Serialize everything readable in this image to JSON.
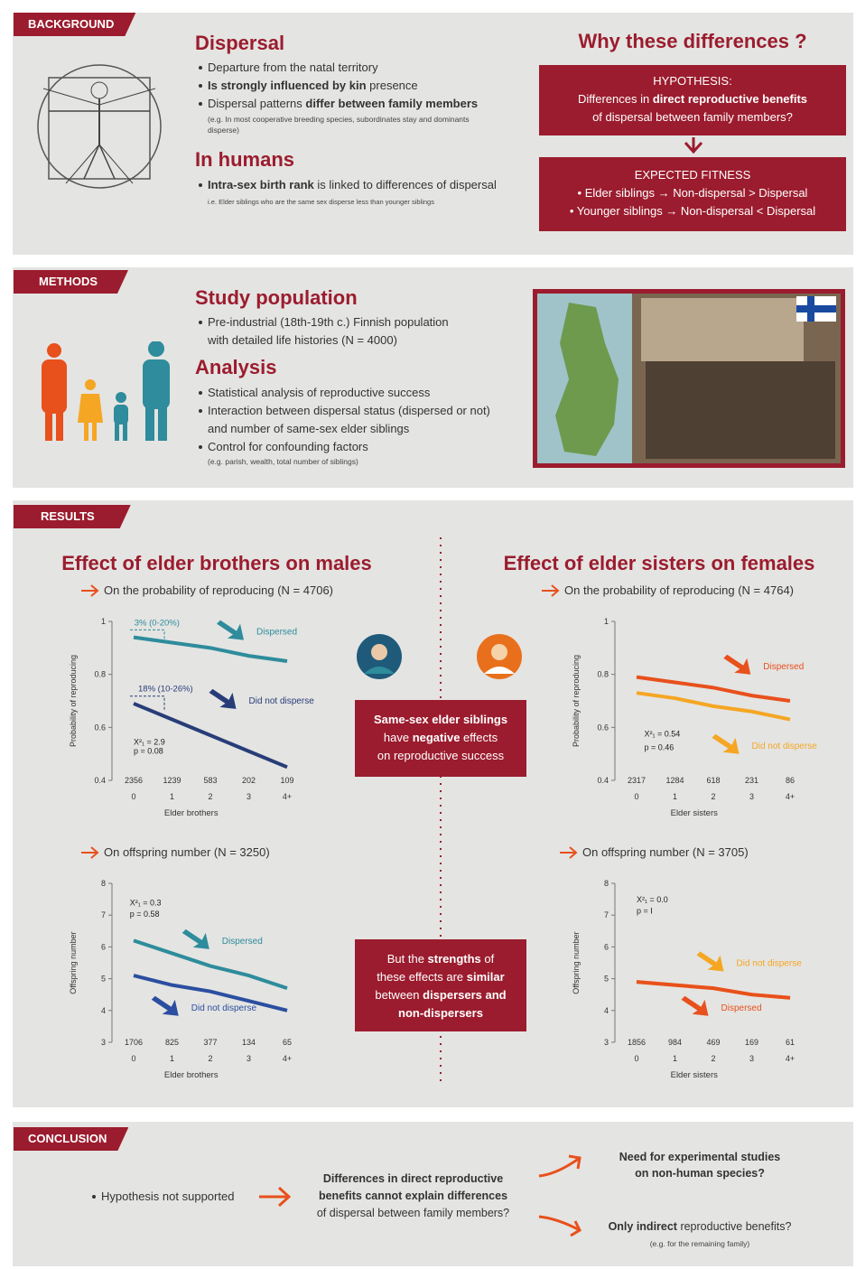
{
  "background": {
    "label": "BACKGROUND",
    "dispersal_title": "Dispersal",
    "dispersal_bullets": [
      [
        {
          "text": "Departure from the natal territory"
        }
      ],
      [
        {
          "text": "Is strongly influenced by kin",
          "bold": true
        },
        {
          "text": " presence"
        }
      ],
      [
        {
          "text": "Dispersal patterns "
        },
        {
          "text": "differ between family members",
          "bold": true
        }
      ]
    ],
    "dispersal_note": "(e.g. In most cooperative breeding species, subordinates stay and dominants disperse)",
    "humans_title": "In humans",
    "humans_bullets": [
      [
        {
          "text": "Intra-sex birth rank",
          "bold": true
        },
        {
          "text": " is linked to differences of dispersal"
        }
      ]
    ],
    "humans_note": "i.e. Elder siblings who are the same sex disperse less than younger siblings",
    "why_title": "Why these differences ?",
    "hypothesis": [
      [
        {
          "text": "HYPOTHESIS:"
        }
      ],
      [
        {
          "text": "Differences in "
        },
        {
          "text": "direct reproductive benefits",
          "bold": true
        }
      ],
      [
        {
          "text": "of dispersal between family members?"
        }
      ]
    ],
    "expected": [
      [
        {
          "text": "EXPECTED FITNESS"
        }
      ],
      [
        {
          "text": "• Elder siblings → Non-dispersal > Dispersal"
        }
      ],
      [
        {
          "text": "• Younger siblings → Non-dispersal < Dispersal"
        }
      ]
    ]
  },
  "methods": {
    "label": "METHODS",
    "population_title": "Study population",
    "population_bullets": [
      [
        {
          "text": "Pre-industrial (18th-19th c.) Finnish population with detailed life histories (N = 4000)"
        }
      ]
    ],
    "analysis_title": "Analysis",
    "analysis_bullets": [
      [
        {
          "text": "Statistical analysis of reproductive success"
        }
      ],
      [
        {
          "text": "Interaction between dispersal status (dispersed or not) and number of same-sex elder siblings"
        }
      ],
      [
        {
          "text": "Control for confounding factors"
        }
      ]
    ],
    "analysis_note": "(e.g. parish, wealth, total number of siblings)"
  },
  "results": {
    "label": "RESULTS",
    "left_title": "Effect of elder brothers on males",
    "right_title": "Effect of elder sisters on females",
    "box1": [
      [
        {
          "text": "Same-sex elder siblings",
          "bold": true
        }
      ],
      [
        {
          "text": "have "
        },
        {
          "text": "negative",
          "bold": true
        },
        {
          "text": " effects"
        }
      ],
      [
        {
          "text": "on reproductive success"
        }
      ]
    ],
    "box2": [
      [
        {
          "text": "But the "
        },
        {
          "text": "strengths",
          "bold": true
        },
        {
          "text": " of"
        }
      ],
      [
        {
          "text": "these effects are "
        },
        {
          "text": "similar",
          "bold": true
        }
      ],
      [
        {
          "text": "between "
        },
        {
          "text": "dispersers and",
          "bold": true
        }
      ],
      [
        {
          "text": "non-dispersers",
          "bold": true
        }
      ]
    ]
  },
  "chart_data": [
    {
      "type": "line",
      "subtitle": "On the probability of reproducing (N = 4706)",
      "xlabel": "Elder brothers",
      "ylabel": "Probability of reproducing",
      "categories": [
        "0",
        "1",
        "2",
        "3",
        "4+"
      ],
      "counts": [
        2356,
        1239,
        583,
        202,
        109
      ],
      "ylim": [
        0.4,
        1
      ],
      "yticks": [
        0.4,
        0.6,
        0.8,
        1
      ],
      "series": [
        {
          "name": "Dispersed",
          "color": "#2e8c9c",
          "values": [
            0.94,
            0.92,
            0.9,
            0.87,
            0.85
          ]
        },
        {
          "name": "Did not disperse",
          "color": "#283d78",
          "values": [
            0.69,
            0.63,
            0.57,
            0.51,
            0.45
          ]
        }
      ],
      "stats": [
        "X²₁ = 2.9",
        "p = 0.08"
      ],
      "effect_labels": [
        "3% (0-20%)",
        "18% (10-26%)"
      ]
    },
    {
      "type": "line",
      "subtitle": "On the probability of reproducing (N = 4764)",
      "xlabel": "Elder sisters",
      "ylabel": "Probability of reproducing",
      "categories": [
        "0",
        "1",
        "2",
        "3",
        "4+"
      ],
      "counts": [
        2317,
        1284,
        618,
        231,
        86
      ],
      "ylim": [
        0.4,
        1
      ],
      "yticks": [
        0.4,
        0.6,
        0.8,
        1
      ],
      "series": [
        {
          "name": "Dispersed",
          "color": "#e8501c",
          "values": [
            0.79,
            0.77,
            0.75,
            0.72,
            0.7
          ]
        },
        {
          "name": "Did not disperse",
          "color": "#f5a623",
          "values": [
            0.73,
            0.71,
            0.68,
            0.66,
            0.63
          ]
        }
      ],
      "stats": [
        "X²₁ = 0.54",
        "p = 0.46"
      ]
    },
    {
      "type": "line",
      "subtitle": "On offspring number (N = 3250)",
      "xlabel": "Elder brothers",
      "ylabel": "Offspring number",
      "categories": [
        "0",
        "1",
        "2",
        "3",
        "4+"
      ],
      "counts": [
        1706,
        825,
        377,
        134,
        65
      ],
      "ylim": [
        3,
        8
      ],
      "yticks": [
        3,
        4,
        5,
        6,
        7,
        8
      ],
      "series": [
        {
          "name": "Dispersed",
          "color": "#2e8c9c",
          "values": [
            6.2,
            5.8,
            5.4,
            5.1,
            4.7
          ]
        },
        {
          "name": "Did not disperse",
          "color": "#2b4ea0",
          "values": [
            5.1,
            4.8,
            4.6,
            4.3,
            4.0
          ]
        }
      ],
      "stats": [
        "X²₁ = 0.3",
        "p = 0.58"
      ]
    },
    {
      "type": "line",
      "subtitle": "On offspring number (N = 3705)",
      "xlabel": "Elder sisters",
      "ylabel": "Offspring number",
      "categories": [
        "0",
        "1",
        "2",
        "3",
        "4+"
      ],
      "counts": [
        1856,
        984,
        469,
        169,
        61
      ],
      "ylim": [
        3,
        8
      ],
      "yticks": [
        3,
        4,
        5,
        6,
        7,
        8
      ],
      "series": [
        {
          "name": "Did not disperse",
          "color": "#f5a623",
          "values": [
            4.9,
            4.8,
            4.7,
            4.5,
            4.4
          ]
        },
        {
          "name": "Dispersed",
          "color": "#e8501c",
          "values": [
            4.9,
            4.8,
            4.7,
            4.5,
            4.4
          ]
        }
      ],
      "stats": [
        "X²₁ = 0.0",
        "p = I"
      ]
    }
  ],
  "conclusion": {
    "label": "CONCLUSION",
    "finding": "Hypothesis not supported",
    "middle": [
      [
        {
          "text": "Differences in direct reproductive",
          "bold": true
        }
      ],
      [
        {
          "text": "benefits cannot explain differences",
          "bold": true
        }
      ],
      [
        {
          "text": "of dispersal between family members?"
        }
      ]
    ],
    "outlook1": [
      [
        {
          "text": "Need for experimental studies",
          "bold": true
        }
      ],
      [
        {
          "text": "on non-human species?",
          "bold": true
        }
      ]
    ],
    "outlook2": [
      [
        {
          "text": "Only indirect",
          "bold": true
        },
        {
          "text": " reproductive benefits?"
        }
      ]
    ],
    "outlook2_note": "(e.g. for the remaining family)"
  }
}
